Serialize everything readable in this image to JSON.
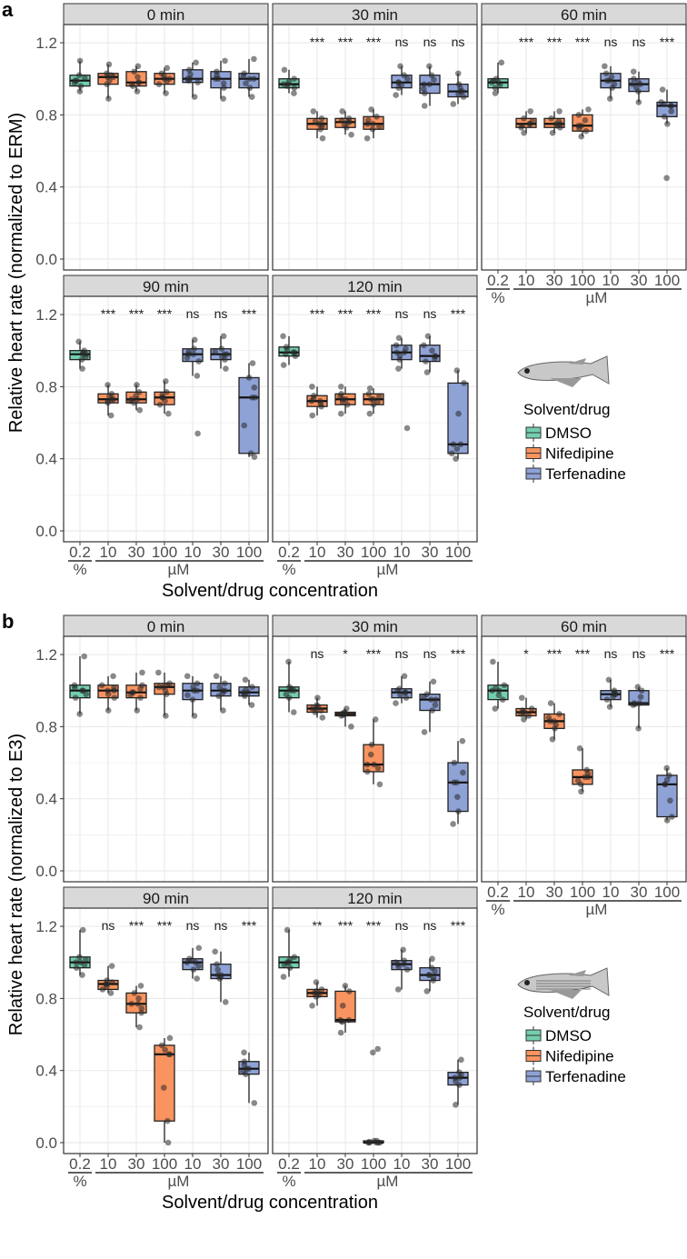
{
  "colors": {
    "DMSO": "#73cfae",
    "Nifedipine": "#f9935f",
    "Terfenadine": "#8ea2d6",
    "strip": "#d9d9d9",
    "grid": "#ebebeb"
  },
  "chart_data": {
    "type": "box",
    "groups": [
      "DMSO",
      "Nifedipine",
      "Nifedipine",
      "Nifedipine",
      "Terfenadine",
      "Terfenadine",
      "Terfenadine"
    ],
    "x_tick_labels": [
      "0.2",
      "10",
      "30",
      "100",
      "10",
      "30",
      "100"
    ],
    "unit_labels": {
      "solvent": "%",
      "drug": "µM"
    },
    "xlabel": "Solvent/drug concentration",
    "yticks": [
      "0.0",
      "0.4",
      "0.8",
      "1.2"
    ],
    "ylim": [
      -0.06,
      1.3
    ],
    "legend": {
      "title": "Solvent/drug",
      "entries": [
        "DMSO",
        "Nifedipine",
        "Terfenadine"
      ],
      "placement": "bottom-right"
    },
    "panels": [
      {
        "label": "a",
        "ylabel": "Relative heart rate (normalized to ERM)",
        "fish": "medaka",
        "facets": [
          {
            "title": "0 min",
            "sig": [
              "",
              "",
              "",
              "",
              "",
              "",
              ""
            ],
            "boxes": [
              [
                0.93,
                0.96,
                0.99,
                1.02,
                1.1
              ],
              [
                0.89,
                0.97,
                1.01,
                1.03,
                1.08
              ],
              [
                0.93,
                0.96,
                0.98,
                1.04,
                1.07
              ],
              [
                0.92,
                0.97,
                1.0,
                1.03,
                1.06
              ],
              [
                0.9,
                0.98,
                1.0,
                1.05,
                1.09
              ],
              [
                0.89,
                0.95,
                1.0,
                1.04,
                1.1
              ],
              [
                0.9,
                0.95,
                1.0,
                1.03,
                1.11
              ]
            ],
            "outliers": [
              [],
              [],
              [],
              [],
              [],
              [],
              []
            ]
          },
          {
            "title": "30 min",
            "sig": [
              "",
              "***",
              "***",
              "***",
              "ns",
              "ns",
              "ns"
            ],
            "boxes": [
              [
                0.92,
                0.95,
                0.97,
                1.0,
                1.05
              ],
              [
                0.67,
                0.72,
                0.75,
                0.78,
                0.82
              ],
              [
                0.69,
                0.73,
                0.76,
                0.78,
                0.82
              ],
              [
                0.67,
                0.72,
                0.75,
                0.79,
                0.83
              ],
              [
                0.91,
                0.95,
                0.98,
                1.02,
                1.07
              ],
              [
                0.85,
                0.92,
                0.97,
                1.02,
                1.07
              ],
              [
                0.86,
                0.9,
                0.93,
                0.97,
                1.03
              ]
            ],
            "outliers": [
              [],
              [],
              [],
              [],
              [],
              [],
              []
            ]
          },
          {
            "title": "60 min",
            "sig": [
              "",
              "***",
              "***",
              "***",
              "ns",
              "ns",
              "***"
            ],
            "boxes": [
              [
                0.92,
                0.95,
                0.98,
                1.0,
                1.09
              ],
              [
                0.7,
                0.73,
                0.75,
                0.78,
                0.82
              ],
              [
                0.7,
                0.73,
                0.75,
                0.78,
                0.82
              ],
              [
                0.68,
                0.71,
                0.74,
                0.8,
                0.83
              ],
              [
                0.89,
                0.95,
                0.99,
                1.03,
                1.07
              ],
              [
                0.87,
                0.93,
                0.97,
                1.0,
                1.04
              ],
              [
                0.75,
                0.79,
                0.85,
                0.87,
                0.94
              ]
            ],
            "outliers": [
              [],
              [],
              [],
              [],
              [],
              [],
              [
                0.45
              ]
            ]
          },
          {
            "title": "90 min",
            "sig": [
              "",
              "***",
              "***",
              "***",
              "ns",
              "ns",
              "***"
            ],
            "boxes": [
              [
                0.9,
                0.95,
                0.98,
                1.0,
                1.05
              ],
              [
                0.64,
                0.71,
                0.73,
                0.76,
                0.81
              ],
              [
                0.67,
                0.71,
                0.73,
                0.77,
                0.81
              ],
              [
                0.65,
                0.7,
                0.74,
                0.77,
                0.83
              ],
              [
                0.86,
                0.94,
                0.98,
                1.01,
                1.06
              ],
              [
                0.9,
                0.95,
                0.98,
                1.01,
                1.08
              ],
              [
                0.41,
                0.43,
                0.74,
                0.85,
                0.93
              ]
            ],
            "outliers": [
              [],
              [],
              [],
              [],
              [
                0.54
              ],
              [],
              []
            ]
          },
          {
            "title": "120 min",
            "sig": [
              "",
              "***",
              "***",
              "***",
              "ns",
              "ns",
              "***"
            ],
            "boxes": [
              [
                0.92,
                0.97,
                0.99,
                1.02,
                1.08
              ],
              [
                0.64,
                0.69,
                0.72,
                0.75,
                0.8
              ],
              [
                0.65,
                0.7,
                0.73,
                0.76,
                0.8
              ],
              [
                0.65,
                0.7,
                0.73,
                0.76,
                0.79
              ],
              [
                0.9,
                0.95,
                0.99,
                1.03,
                1.07
              ],
              [
                0.88,
                0.94,
                0.97,
                1.03,
                1.08
              ],
              [
                0.4,
                0.43,
                0.48,
                0.82,
                0.89
              ]
            ],
            "outliers": [
              [],
              [],
              [],
              [],
              [
                0.57
              ],
              [],
              []
            ]
          }
        ]
      },
      {
        "label": "b",
        "ylabel": "Relative heart rate (normalized to E3)",
        "fish": "zebrafish",
        "facets": [
          {
            "title": "0 min",
            "sig": [
              "",
              "",
              "",
              "",
              "",
              "",
              ""
            ],
            "boxes": [
              [
                0.87,
                0.96,
                1.0,
                1.03,
                1.19
              ],
              [
                0.89,
                0.96,
                1.0,
                1.03,
                1.08
              ],
              [
                0.89,
                0.96,
                0.99,
                1.03,
                1.1
              ],
              [
                0.86,
                0.98,
                1.02,
                1.04,
                1.1
              ],
              [
                0.86,
                0.95,
                1.0,
                1.04,
                1.08
              ],
              [
                0.89,
                0.97,
                1.0,
                1.04,
                1.08
              ],
              [
                0.92,
                0.97,
                0.99,
                1.02,
                1.06
              ]
            ],
            "outliers": [
              [],
              [],
              [],
              [],
              [],
              [],
              []
            ]
          },
          {
            "title": "30 min",
            "sig": [
              "",
              "ns",
              "*",
              "***",
              "ns",
              "ns",
              "***"
            ],
            "boxes": [
              [
                0.88,
                0.96,
                1.0,
                1.02,
                1.16
              ],
              [
                0.85,
                0.88,
                0.9,
                0.92,
                0.96
              ],
              [
                0.8,
                0.86,
                0.87,
                0.88,
                0.9
              ],
              [
                0.48,
                0.55,
                0.59,
                0.7,
                0.84
              ],
              [
                0.93,
                0.96,
                0.99,
                1.01,
                1.08
              ],
              [
                0.77,
                0.89,
                0.95,
                0.98,
                1.05
              ],
              [
                0.26,
                0.33,
                0.49,
                0.6,
                0.72
              ]
            ],
            "outliers": [
              [],
              [],
              [],
              [],
              [],
              [],
              []
            ]
          },
          {
            "title": "60 min",
            "sig": [
              "",
              "*",
              "***",
              "***",
              "ns",
              "ns",
              "***"
            ],
            "boxes": [
              [
                0.9,
                0.95,
                1.0,
                1.03,
                1.16
              ],
              [
                0.84,
                0.86,
                0.88,
                0.9,
                0.96
              ],
              [
                0.73,
                0.79,
                0.83,
                0.87,
                0.93
              ],
              [
                0.44,
                0.48,
                0.52,
                0.56,
                0.68
              ],
              [
                0.91,
                0.95,
                0.98,
                1.0,
                1.06
              ],
              [
                0.79,
                0.92,
                0.93,
                1.0,
                1.02
              ],
              [
                0.28,
                0.3,
                0.48,
                0.53,
                0.57
              ]
            ],
            "outliers": [
              [],
              [],
              [],
              [],
              [],
              [],
              []
            ]
          },
          {
            "title": "90 min",
            "sig": [
              "",
              "ns",
              "***",
              "***",
              "ns",
              "ns",
              "***"
            ],
            "boxes": [
              [
                0.93,
                0.97,
                1.0,
                1.03,
                1.18
              ],
              [
                0.83,
                0.85,
                0.88,
                0.9,
                0.98
              ],
              [
                0.64,
                0.72,
                0.77,
                0.83,
                0.87
              ],
              [
                0.0,
                0.12,
                0.49,
                0.54,
                0.58
              ],
              [
                0.91,
                0.96,
                1.0,
                1.02,
                1.08
              ],
              [
                0.78,
                0.91,
                0.93,
                0.99,
                1.06
              ],
              [
                0.22,
                0.38,
                0.41,
                0.45,
                0.5
              ]
            ],
            "outliers": [
              [],
              [],
              [],
              [],
              [],
              [],
              []
            ]
          },
          {
            "title": "120 min",
            "sig": [
              "",
              "**",
              "***",
              "***",
              "ns",
              "ns",
              "***"
            ],
            "boxes": [
              [
                0.92,
                0.97,
                1.0,
                1.03,
                1.18
              ],
              [
                0.76,
                0.81,
                0.83,
                0.85,
                0.89
              ],
              [
                0.61,
                0.67,
                0.68,
                0.84,
                0.87
              ],
              [
                0.0,
                0.0,
                0.0,
                0.01,
                0.01
              ],
              [
                0.85,
                0.96,
                0.99,
                1.01,
                1.07
              ],
              [
                0.84,
                0.9,
                0.93,
                0.97,
                1.02
              ],
              [
                0.21,
                0.32,
                0.36,
                0.39,
                0.46
              ]
            ],
            "outliers": [
              [],
              [],
              [],
              [
                0.5,
                0.52
              ],
              [],
              [],
              []
            ]
          }
        ]
      }
    ]
  }
}
